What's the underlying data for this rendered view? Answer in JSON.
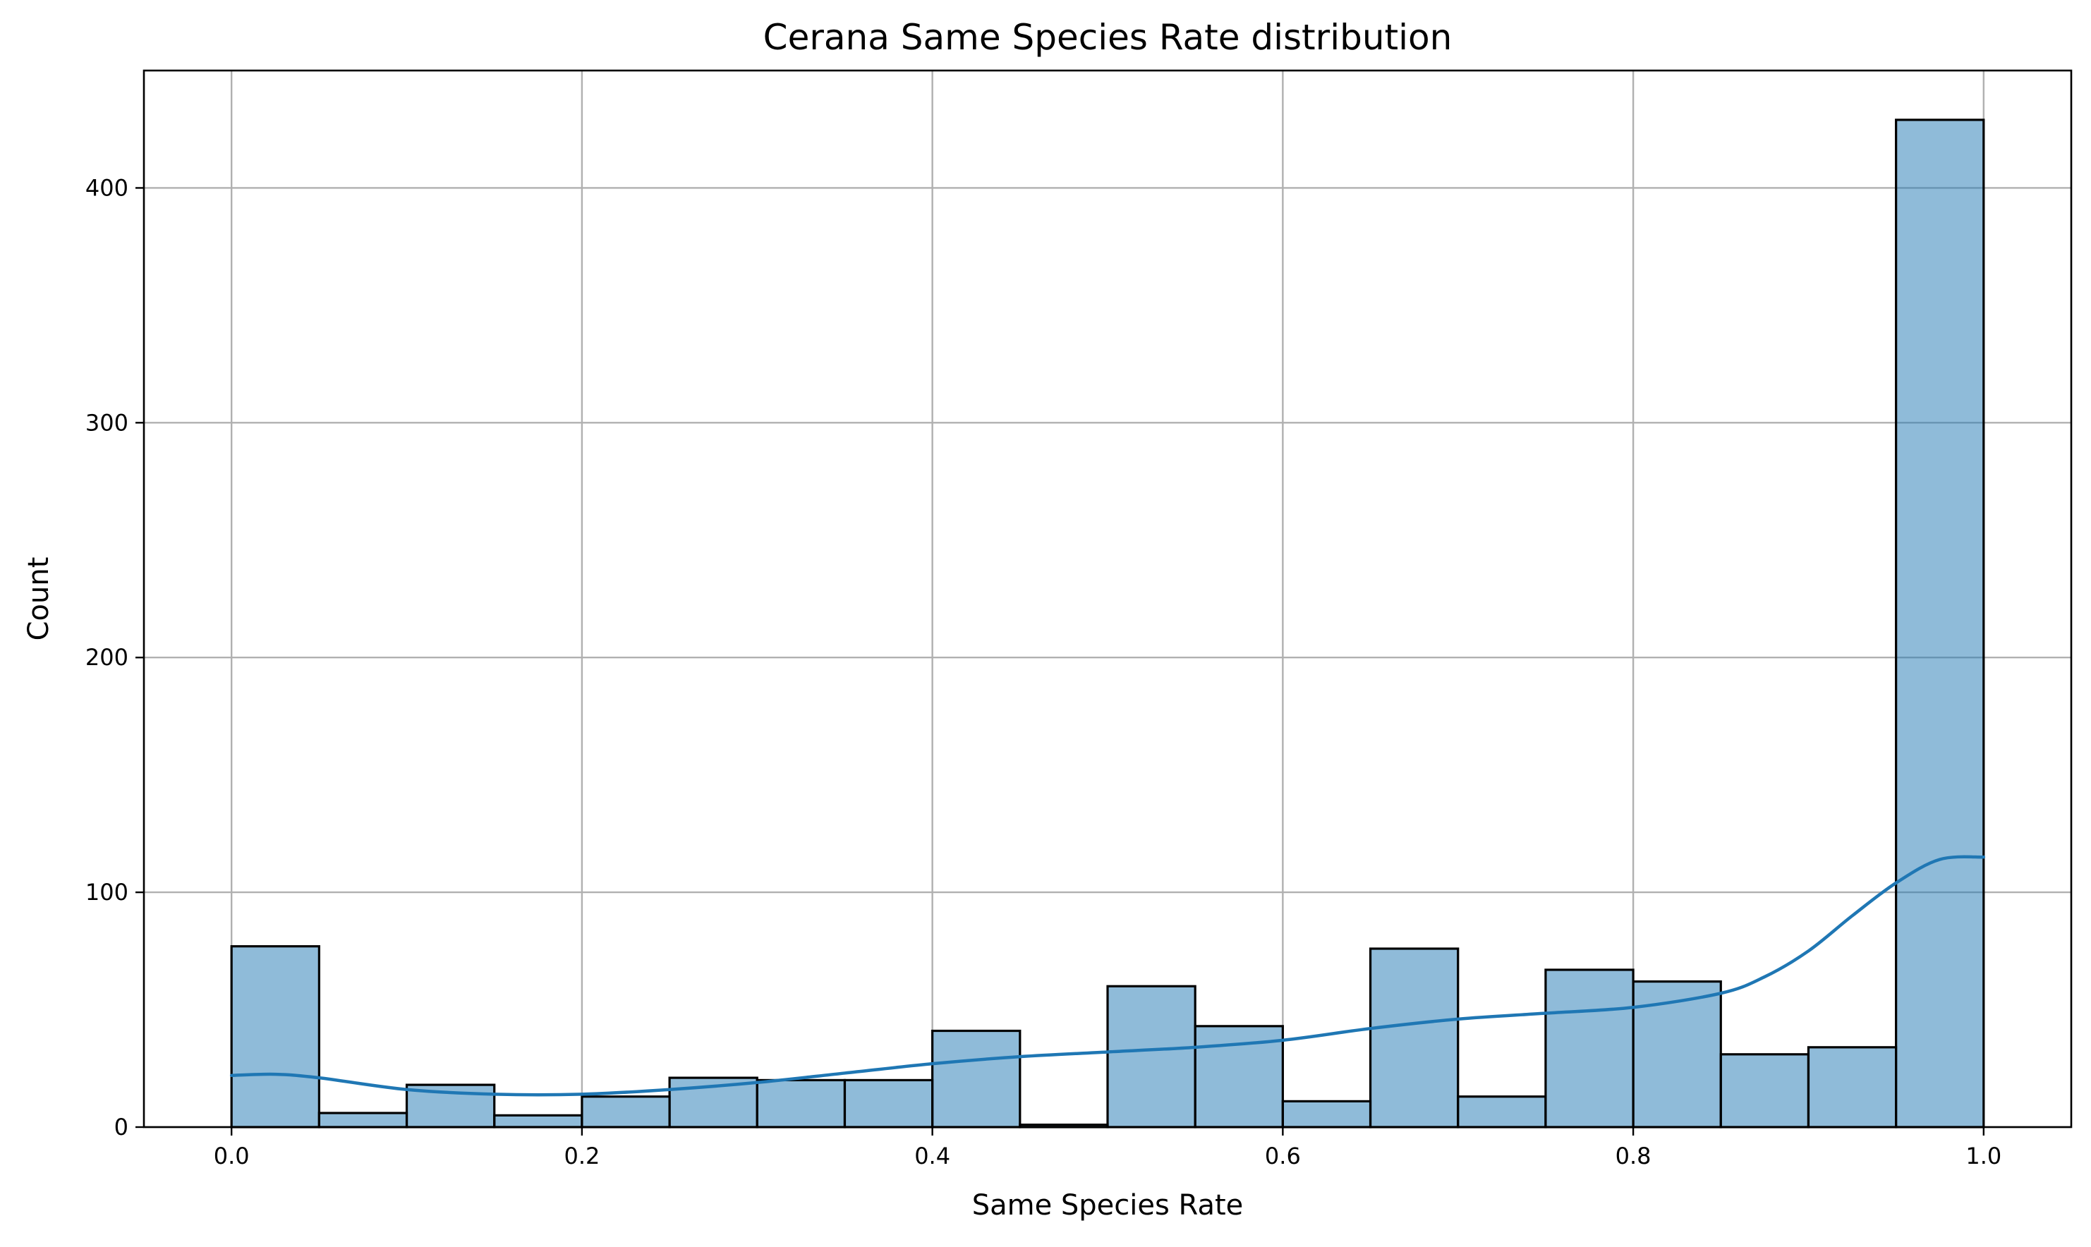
{
  "chart_data": {
    "type": "bar",
    "title": "Cerana Same Species Rate distribution",
    "xlabel": "Same Species Rate",
    "ylabel": "Count",
    "xlim": [
      -0.05,
      1.05
    ],
    "ylim": [
      0,
      450
    ],
    "grid": true,
    "bin_edges": [
      0.0,
      0.05,
      0.1,
      0.15,
      0.2,
      0.25,
      0.3,
      0.35,
      0.4,
      0.45,
      0.5,
      0.55,
      0.6,
      0.65,
      0.7,
      0.75,
      0.8,
      0.85,
      0.9,
      0.95,
      1.0
    ],
    "values": [
      77,
      6,
      18,
      5,
      13,
      21,
      20,
      20,
      41,
      1,
      60,
      43,
      11,
      76,
      13,
      67,
      62,
      31,
      34,
      429
    ],
    "x_ticks": [
      0.0,
      0.2,
      0.4,
      0.6,
      0.8,
      1.0
    ],
    "x_tick_labels": [
      "0.0",
      "0.2",
      "0.4",
      "0.6",
      "0.8",
      "1.0"
    ],
    "y_ticks": [
      0,
      100,
      200,
      300,
      400
    ],
    "y_tick_labels": [
      "0",
      "100",
      "200",
      "300",
      "400"
    ],
    "kde": {
      "x": [
        0.0,
        0.025,
        0.05,
        0.1,
        0.15,
        0.2,
        0.25,
        0.3,
        0.35,
        0.4,
        0.45,
        0.5,
        0.55,
        0.6,
        0.65,
        0.7,
        0.75,
        0.8,
        0.85,
        0.875,
        0.9,
        0.925,
        0.95,
        0.975,
        1.0
      ],
      "y": [
        22,
        22.5,
        21,
        16,
        14,
        14,
        16,
        19,
        23,
        27,
        30,
        32,
        34,
        37,
        42,
        46,
        48.5,
        51,
        57,
        64,
        75,
        90,
        104,
        114,
        115
      ]
    },
    "colors": {
      "bar": "#1f77b4",
      "line": "#1f77b4",
      "grid": "#b0b0b0"
    }
  }
}
